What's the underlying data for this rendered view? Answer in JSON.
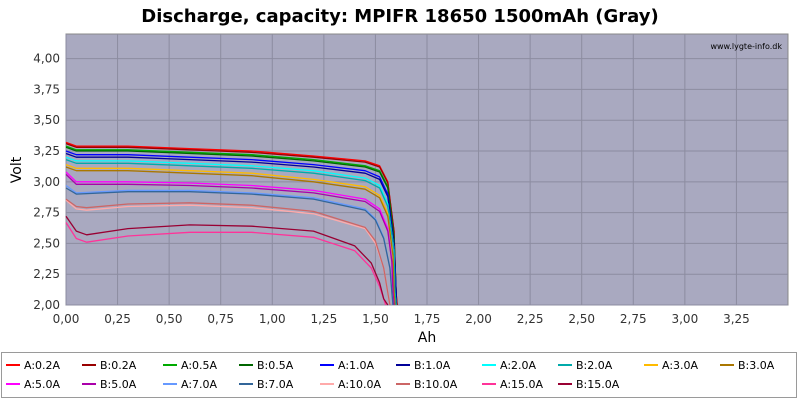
{
  "chart_data": {
    "type": "line",
    "title": "Discharge, capacity: MPIFR 18650 1500mAh (Gray)",
    "xlabel": "Ah",
    "ylabel": "Volt",
    "watermark": "www.lygte-info.dk",
    "xlim": [
      0,
      3.5
    ],
    "ylim": [
      2.0,
      4.2
    ],
    "xticks": [
      "0,00",
      "0,25",
      "0,50",
      "0,75",
      "1,00",
      "1,25",
      "1,50",
      "1,75",
      "2,00",
      "2,25",
      "2,50",
      "2,75",
      "3,00",
      "3,25"
    ],
    "yticks": [
      "2,00",
      "2,25",
      "2,50",
      "2,75",
      "3,00",
      "3,25",
      "3,50",
      "3,75",
      "4,00"
    ],
    "grid": true,
    "legend_position": "bottom",
    "plot_background": "#a9a9c0",
    "series": [
      {
        "name": "A:0.2A",
        "color": "#ff0000",
        "x": [
          0,
          0.05,
          0.3,
          0.6,
          0.9,
          1.2,
          1.45,
          1.52,
          1.56,
          1.59,
          1.6,
          1.605
        ],
        "y": [
          3.32,
          3.29,
          3.29,
          3.27,
          3.25,
          3.21,
          3.17,
          3.13,
          3.0,
          2.6,
          2.1,
          2.0
        ]
      },
      {
        "name": "B:0.2A",
        "color": "#990000",
        "x": [
          0,
          0.05,
          0.3,
          0.6,
          0.9,
          1.2,
          1.45,
          1.52,
          1.56,
          1.59,
          1.6,
          1.605
        ],
        "y": [
          3.31,
          3.28,
          3.28,
          3.26,
          3.24,
          3.2,
          3.16,
          3.12,
          2.99,
          2.6,
          2.1,
          2.0
        ]
      },
      {
        "name": "A:0.5A",
        "color": "#00aa00",
        "x": [
          0,
          0.05,
          0.3,
          0.6,
          0.9,
          1.2,
          1.45,
          1.52,
          1.56,
          1.59,
          1.6,
          1.6
        ],
        "y": [
          3.29,
          3.26,
          3.26,
          3.24,
          3.22,
          3.18,
          3.13,
          3.09,
          2.96,
          2.55,
          2.1,
          2.0
        ]
      },
      {
        "name": "B:0.5A",
        "color": "#006600",
        "x": [
          0,
          0.05,
          0.3,
          0.6,
          0.9,
          1.2,
          1.45,
          1.52,
          1.56,
          1.59,
          1.6,
          1.6
        ],
        "y": [
          3.28,
          3.25,
          3.25,
          3.23,
          3.21,
          3.17,
          3.12,
          3.08,
          2.95,
          2.55,
          2.1,
          2.0
        ]
      },
      {
        "name": "A:1.0A",
        "color": "#0000ff",
        "x": [
          0,
          0.05,
          0.3,
          0.6,
          0.9,
          1.2,
          1.45,
          1.52,
          1.56,
          1.59,
          1.6,
          1.6
        ],
        "y": [
          3.25,
          3.22,
          3.22,
          3.2,
          3.18,
          3.14,
          3.09,
          3.04,
          2.9,
          2.5,
          2.1,
          2.0
        ]
      },
      {
        "name": "B:1.0A",
        "color": "#000099",
        "x": [
          0,
          0.05,
          0.3,
          0.6,
          0.9,
          1.2,
          1.45,
          1.52,
          1.56,
          1.59,
          1.6,
          1.6
        ],
        "y": [
          3.23,
          3.2,
          3.2,
          3.18,
          3.16,
          3.12,
          3.07,
          3.02,
          2.88,
          2.5,
          2.1,
          2.0
        ]
      },
      {
        "name": "A:2.0A",
        "color": "#00ffff",
        "x": [
          0,
          0.05,
          0.3,
          0.6,
          0.9,
          1.2,
          1.45,
          1.52,
          1.56,
          1.59,
          1.595,
          1.6
        ],
        "y": [
          3.2,
          3.17,
          3.17,
          3.15,
          3.13,
          3.09,
          3.03,
          2.97,
          2.82,
          2.45,
          2.1,
          2.0
        ]
      },
      {
        "name": "B:2.0A",
        "color": "#00aaaa",
        "x": [
          0,
          0.05,
          0.3,
          0.6,
          0.9,
          1.2,
          1.45,
          1.52,
          1.56,
          1.59,
          1.595,
          1.6
        ],
        "y": [
          3.18,
          3.15,
          3.15,
          3.13,
          3.11,
          3.07,
          3.01,
          2.95,
          2.8,
          2.45,
          2.1,
          2.0
        ]
      },
      {
        "name": "A:3.0A",
        "color": "#ffbb00",
        "x": [
          0,
          0.05,
          0.3,
          0.6,
          0.9,
          1.2,
          1.45,
          1.52,
          1.56,
          1.585,
          1.59,
          1.595
        ],
        "y": [
          3.14,
          3.11,
          3.11,
          3.09,
          3.07,
          3.02,
          2.96,
          2.89,
          2.74,
          2.4,
          2.1,
          2.0
        ]
      },
      {
        "name": "B:3.0A",
        "color": "#aa7700",
        "x": [
          0,
          0.05,
          0.3,
          0.6,
          0.9,
          1.2,
          1.45,
          1.52,
          1.56,
          1.585,
          1.59,
          1.595
        ],
        "y": [
          3.12,
          3.09,
          3.09,
          3.07,
          3.05,
          3.0,
          2.94,
          2.87,
          2.72,
          2.4,
          2.1,
          2.0
        ]
      },
      {
        "name": "A:5.0A",
        "color": "#ff00ff",
        "x": [
          0,
          0.05,
          0.3,
          0.6,
          0.9,
          1.2,
          1.45,
          1.52,
          1.56,
          1.58,
          1.585,
          1.59
        ],
        "y": [
          3.08,
          3.0,
          3.0,
          2.99,
          2.97,
          2.93,
          2.86,
          2.78,
          2.62,
          2.35,
          2.1,
          2.0
        ]
      },
      {
        "name": "B:5.0A",
        "color": "#aa00aa",
        "x": [
          0,
          0.05,
          0.3,
          0.6,
          0.9,
          1.2,
          1.45,
          1.52,
          1.56,
          1.58,
          1.585,
          1.59
        ],
        "y": [
          3.06,
          2.98,
          2.98,
          2.97,
          2.95,
          2.91,
          2.84,
          2.76,
          2.6,
          2.35,
          2.1,
          2.0
        ]
      },
      {
        "name": "A:7.0A",
        "color": "#6699ff",
        "x": [
          0,
          0.05,
          0.3,
          0.6,
          0.9,
          1.2,
          1.45,
          1.5,
          1.54,
          1.57,
          1.58,
          1.585
        ],
        "y": [
          2.97,
          2.91,
          2.93,
          2.93,
          2.91,
          2.87,
          2.78,
          2.7,
          2.55,
          2.3,
          2.1,
          2.0
        ]
      },
      {
        "name": "B:7.0A",
        "color": "#336699",
        "x": [
          0,
          0.05,
          0.3,
          0.6,
          0.9,
          1.2,
          1.45,
          1.5,
          1.54,
          1.57,
          1.58,
          1.585
        ],
        "y": [
          2.95,
          2.9,
          2.92,
          2.92,
          2.9,
          2.86,
          2.77,
          2.69,
          2.54,
          2.3,
          2.1,
          2.0
        ]
      },
      {
        "name": "A:10.0A",
        "color": "#ffaaaa",
        "x": [
          0,
          0.05,
          0.1,
          0.3,
          0.6,
          0.9,
          1.2,
          1.45,
          1.5,
          1.54,
          1.56,
          1.57
        ],
        "y": [
          2.85,
          2.78,
          2.77,
          2.8,
          2.81,
          2.79,
          2.74,
          2.62,
          2.5,
          2.3,
          2.1,
          2.0
        ]
      },
      {
        "name": "B:10.0A",
        "color": "#cc6666",
        "x": [
          0,
          0.05,
          0.1,
          0.3,
          0.6,
          0.9,
          1.2,
          1.45,
          1.5,
          1.54,
          1.56,
          1.57
        ],
        "y": [
          2.86,
          2.8,
          2.79,
          2.82,
          2.83,
          2.81,
          2.76,
          2.63,
          2.52,
          2.3,
          2.1,
          2.0
        ]
      },
      {
        "name": "A:15.0A",
        "color": "#ff3399",
        "x": [
          0,
          0.05,
          0.1,
          0.3,
          0.6,
          0.9,
          1.2,
          1.4,
          1.48,
          1.52,
          1.54,
          1.55
        ],
        "y": [
          2.67,
          2.54,
          2.51,
          2.56,
          2.59,
          2.59,
          2.55,
          2.44,
          2.3,
          2.15,
          2.05,
          2.0
        ]
      },
      {
        "name": "B:15.0A",
        "color": "#990033",
        "x": [
          0,
          0.05,
          0.1,
          0.3,
          0.6,
          0.9,
          1.2,
          1.4,
          1.48,
          1.52,
          1.54,
          1.56
        ],
        "y": [
          2.72,
          2.6,
          2.57,
          2.62,
          2.65,
          2.64,
          2.6,
          2.48,
          2.34,
          2.18,
          2.05,
          2.0
        ]
      }
    ]
  }
}
